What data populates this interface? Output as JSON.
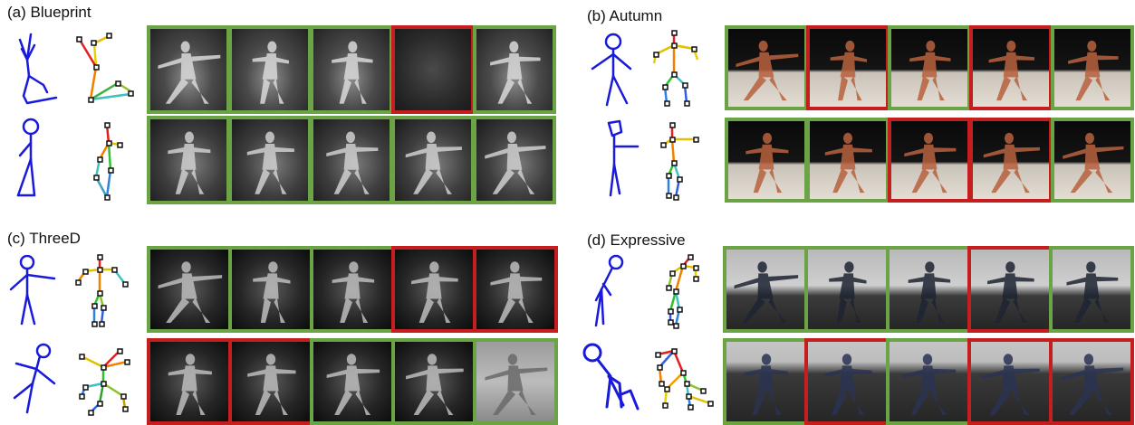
{
  "panels": [
    {
      "id": "a",
      "label": "(a) Blueprint",
      "rows": [
        {
          "frames": [
            "correct",
            "correct",
            "correct",
            "incorrect",
            "correct"
          ],
          "style": "gray"
        },
        {
          "frames": [
            "correct",
            "correct",
            "correct",
            "correct",
            "correct"
          ],
          "style": "gray2"
        }
      ]
    },
    {
      "id": "b",
      "label": "(b) Autumn",
      "rows": [
        {
          "frames": [
            "correct",
            "incorrect",
            "correct",
            "incorrect",
            "correct"
          ],
          "style": "stage"
        },
        {
          "frames": [
            "correct",
            "correct",
            "incorrect",
            "incorrect",
            "correct"
          ],
          "style": "stage"
        }
      ]
    },
    {
      "id": "c",
      "label": "(c) ThreeD",
      "rows": [
        {
          "frames": [
            "correct",
            "correct",
            "correct",
            "incorrect",
            "incorrect"
          ],
          "style": "dark"
        },
        {
          "frames": [
            "incorrect",
            "incorrect",
            "correct",
            "correct",
            "light"
          ],
          "style": "dark"
        }
      ]
    },
    {
      "id": "d",
      "label": "(d) Expressive",
      "rows": [
        {
          "frames": [
            "correct",
            "correct",
            "correct",
            "incorrect",
            "correct"
          ],
          "style": "studio"
        },
        {
          "frames": [
            "correct",
            "incorrect",
            "correct",
            "incorrect",
            "incorrect"
          ],
          "style": "studio2"
        }
      ]
    }
  ],
  "colors": {
    "correct": "#6aa444",
    "incorrect": "#c41e1e",
    "sketch": "#1a1adb"
  }
}
